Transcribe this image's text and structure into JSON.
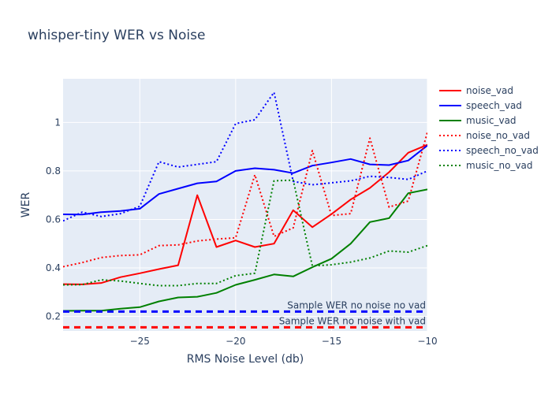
{
  "chart_data": {
    "type": "line",
    "title": "whisper-tiny WER vs Noise",
    "xlabel": "RMS Noise Level (db)",
    "ylabel": "WER",
    "xlim": [
      -29,
      -10
    ],
    "ylim": [
      0.14,
      1.18
    ],
    "xticks": [
      -25,
      -20,
      -15,
      -10
    ],
    "yticks": [
      0.2,
      0.4,
      0.6,
      0.8,
      1
    ],
    "grid": true,
    "legend_position": "right",
    "x": [
      -29,
      -28,
      -27,
      -26,
      -25,
      -24,
      -23,
      -22,
      -21,
      -20,
      -19,
      -18,
      -17,
      -16,
      -15,
      -14,
      -13,
      -12,
      -11,
      -10
    ],
    "series": [
      {
        "name": "noise_vad",
        "color": "#ff0000",
        "dash": "solid",
        "values": [
          0.333,
          0.332,
          0.338,
          0.362,
          0.378,
          0.395,
          0.411,
          0.7,
          0.486,
          0.513,
          0.486,
          0.5,
          0.638,
          0.568,
          0.622,
          0.682,
          0.73,
          0.795,
          0.875,
          0.908
        ]
      },
      {
        "name": "speech_vad",
        "color": "#0000ff",
        "dash": "solid",
        "values": [
          0.621,
          0.62,
          0.63,
          0.635,
          0.644,
          0.705,
          0.727,
          0.749,
          0.757,
          0.8,
          0.811,
          0.805,
          0.791,
          0.822,
          0.835,
          0.849,
          0.827,
          0.824,
          0.843,
          0.905
        ]
      },
      {
        "name": "music_vad",
        "color": "#008000",
        "dash": "solid",
        "values": [
          0.223,
          0.224,
          0.224,
          0.232,
          0.238,
          0.262,
          0.278,
          0.281,
          0.297,
          0.33,
          0.351,
          0.373,
          0.365,
          0.403,
          0.438,
          0.5,
          0.589,
          0.605,
          0.708,
          0.724
        ]
      },
      {
        "name": "noise_no_vad",
        "color": "#ff0000",
        "dash": "dotted",
        "values": [
          0.405,
          0.422,
          0.443,
          0.451,
          0.454,
          0.492,
          0.495,
          0.511,
          0.519,
          0.524,
          0.784,
          0.53,
          0.565,
          0.884,
          0.616,
          0.624,
          0.935,
          0.651,
          0.676,
          0.96
        ]
      },
      {
        "name": "speech_no_vad",
        "color": "#0000ff",
        "dash": "dotted",
        "values": [
          0.594,
          0.63,
          0.612,
          0.624,
          0.654,
          0.838,
          0.816,
          0.827,
          0.838,
          0.995,
          1.011,
          1.124,
          0.757,
          0.743,
          0.751,
          0.759,
          0.778,
          0.773,
          0.765,
          0.8
        ]
      },
      {
        "name": "music_no_vad",
        "color": "#008000",
        "dash": "dotted",
        "values": [
          0.33,
          0.331,
          0.351,
          0.346,
          0.336,
          0.327,
          0.327,
          0.336,
          0.336,
          0.368,
          0.378,
          0.759,
          0.762,
          0.408,
          0.413,
          0.424,
          0.441,
          0.47,
          0.465,
          0.492
        ]
      }
    ],
    "reference_lines": [
      {
        "label": "Sample WER no noise no vad",
        "y": 0.22,
        "color": "#0000ff"
      },
      {
        "label": "Sample WER no noise with vad",
        "y": 0.155,
        "color": "#ff0000"
      }
    ]
  }
}
